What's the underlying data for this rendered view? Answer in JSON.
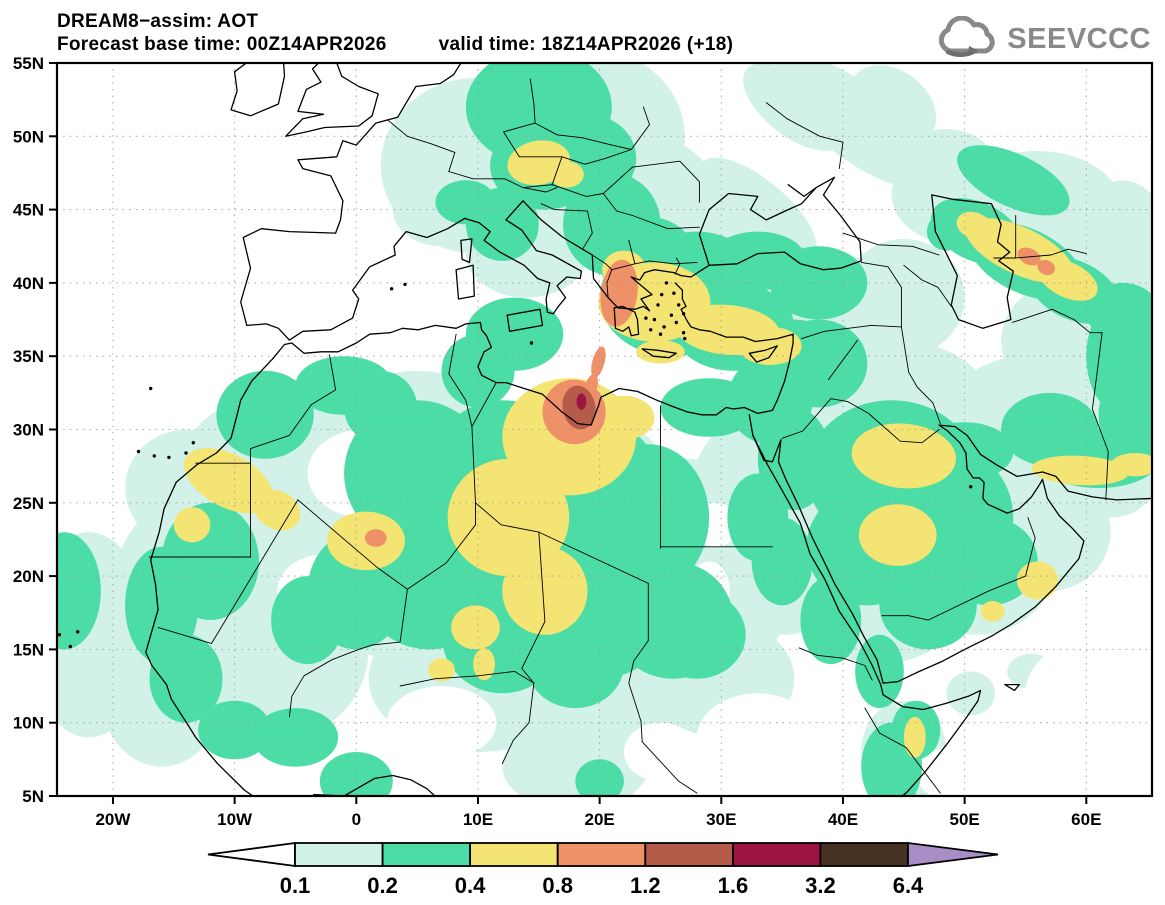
{
  "header": {
    "title": "DREAM8−assim: AOT",
    "forecast_base": "Forecast base time: 00Z14APR2026",
    "valid_time": "valid time: 18Z14APR2026 (+18)"
  },
  "logo": {
    "text": "SEEVCCC"
  },
  "map": {
    "lat_ticks": [
      {
        "label": "55N",
        "value": 55
      },
      {
        "label": "50N",
        "value": 50
      },
      {
        "label": "45N",
        "value": 45
      },
      {
        "label": "40N",
        "value": 40
      },
      {
        "label": "35N",
        "value": 35
      },
      {
        "label": "30N",
        "value": 30
      },
      {
        "label": "25N",
        "value": 25
      },
      {
        "label": "20N",
        "value": 20
      },
      {
        "label": "15N",
        "value": 15
      },
      {
        "label": "10N",
        "value": 10
      },
      {
        "label": "5N",
        "value": 5
      }
    ],
    "lon_ticks": [
      {
        "label": "20W",
        "value": -20
      },
      {
        "label": "10W",
        "value": -10
      },
      {
        "label": "0",
        "value": 0
      },
      {
        "label": "10E",
        "value": 10
      },
      {
        "label": "20E",
        "value": 20
      },
      {
        "label": "30E",
        "value": 30
      },
      {
        "label": "40E",
        "value": 40
      },
      {
        "label": "50E",
        "value": 50
      },
      {
        "label": "60E",
        "value": 60
      }
    ]
  },
  "colorbar": {
    "boundary_labels": [
      "0.1",
      "0.2",
      "0.4",
      "0.8",
      "1.2",
      "1.6",
      "3.2",
      "6.4"
    ],
    "segments": [
      {
        "range": "< 0.1",
        "color": "#ffffff",
        "shape": "arrow-left"
      },
      {
        "range": "0.1–0.2",
        "color": "#d2f2e9"
      },
      {
        "range": "0.2–0.4",
        "color": "#4cdca6"
      },
      {
        "range": "0.4–0.8",
        "color": "#f4e473"
      },
      {
        "range": "0.8–1.2",
        "color": "#ef9168"
      },
      {
        "range": "1.2–1.6",
        "color": "#b45b49"
      },
      {
        "range": "1.6–3.2",
        "color": "#9c1440"
      },
      {
        "range": "3.2–6.4",
        "color": "#473122"
      },
      {
        "range": "> 6.4",
        "color": "#a98dc7",
        "shape": "arrow-right"
      }
    ]
  },
  "chart_data": {
    "type": "filled-contour-map",
    "field": "AOT (aerosol optical thickness)",
    "model": "DREAM8-assim",
    "base_time": "00Z14APR2026",
    "valid_time": "18Z14APR2026",
    "forecast_hour": "+18",
    "domain": {
      "lon_range": [
        "20W",
        "65E"
      ],
      "lat_range": [
        "5N",
        "55N"
      ]
    },
    "contour_levels": [
      0.1,
      0.2,
      0.4,
      0.8,
      1.2,
      1.6,
      3.2,
      6.4
    ],
    "hotspots": [
      {
        "location": "Gulf of Sidra / NE Libya (~18E, 31.5N)",
        "max_band": "1.6–3.2"
      },
      {
        "location": "Western Greece / Ionian (~21.5E, 39N)",
        "max_band": "0.8–1.2"
      },
      {
        "location": "Mali (~1.5E, 22.5N)",
        "max_band": "0.8–1.2"
      },
      {
        "location": "East of Caspian Sea (~56E, 41.5N)",
        "max_band": "0.8–1.2"
      },
      {
        "location": "Central Sahara / Libya–Chad yellow band",
        "max_band": "0.4–0.8"
      },
      {
        "location": "Aegean Sea – Cyprus band",
        "max_band": "0.4–0.8"
      },
      {
        "location": "Northern Saudi Arabia",
        "max_band": "0.4–0.8"
      },
      {
        "location": "Czech/Austria (central Europe)",
        "max_band": "0.4–0.8"
      }
    ]
  }
}
